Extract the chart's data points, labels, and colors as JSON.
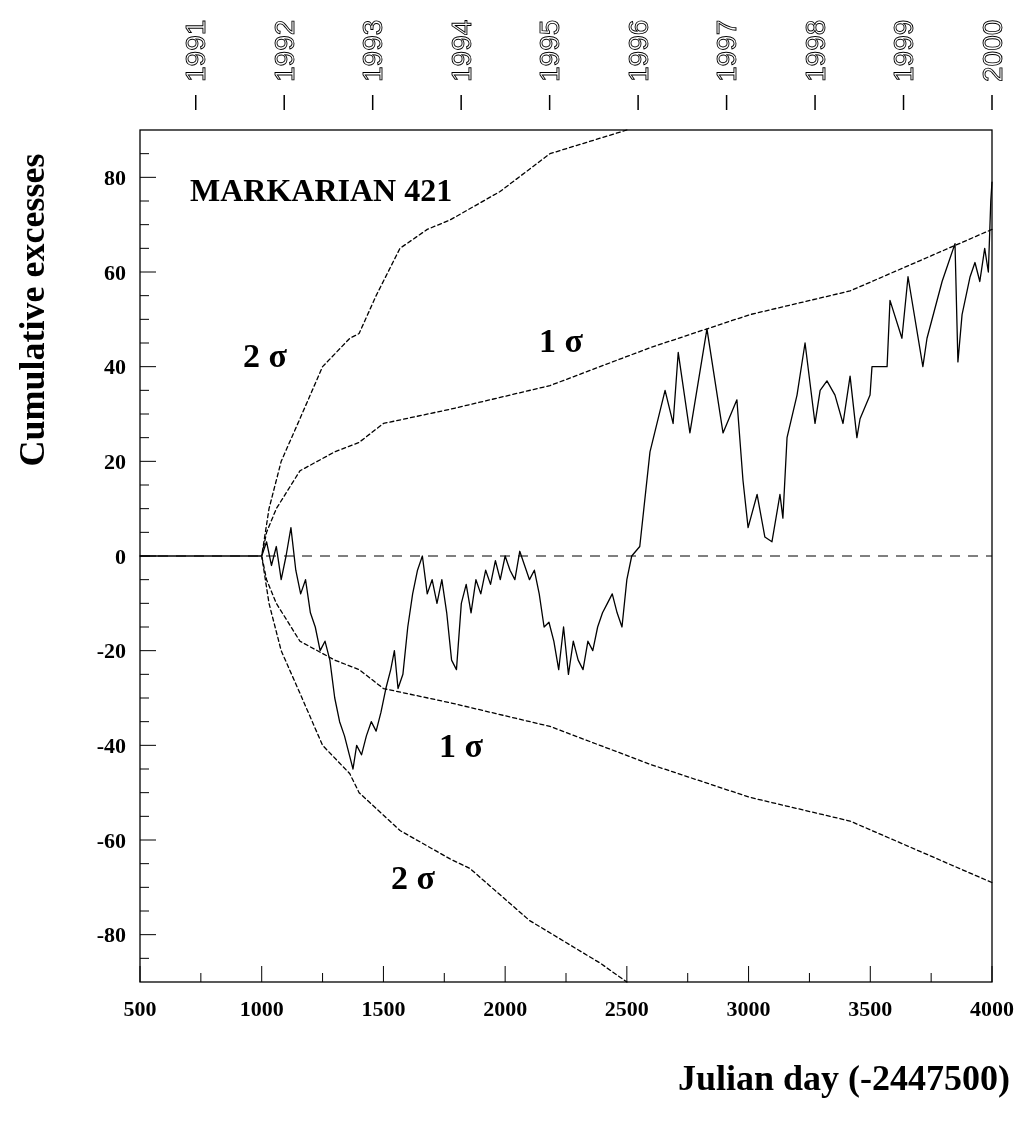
{
  "chart_data": {
    "type": "line",
    "title": "MARKARIAN 421",
    "xlabel": "Julian day (-2447500)",
    "ylabel": "Cumulative excesses",
    "xlim": [
      500,
      4000
    ],
    "ylim": [
      -90,
      90
    ],
    "xticks": [
      500,
      {
        "value": 750,
        "label": null
      },
      1000,
      {
        "value": 1250,
        "label": null
      },
      1500,
      {
        "value": 1750,
        "label": null
      },
      2000,
      {
        "value": 2250,
        "label": null
      },
      2500,
      {
        "value": 2750,
        "label": null
      },
      3000,
      {
        "value": 3250,
        "label": null
      },
      3500,
      {
        "value": 3750,
        "label": null
      },
      4000
    ],
    "yticks": [
      {
        "value": -85,
        "label": null
      },
      -80,
      {
        "value": -75,
        "label": null
      },
      {
        "value": -70,
        "label": null
      },
      {
        "value": -65,
        "label": null
      },
      -60,
      {
        "value": -55,
        "label": null
      },
      {
        "value": -50,
        "label": null
      },
      {
        "value": -45,
        "label": null
      },
      -40,
      {
        "value": -35,
        "label": null
      },
      {
        "value": -30,
        "label": null
      },
      {
        "value": -25,
        "label": null
      },
      -20,
      {
        "value": -15,
        "label": null
      },
      {
        "value": -10,
        "label": null
      },
      {
        "value": -5,
        "label": null
      },
      0,
      {
        "value": 5,
        "label": null
      },
      {
        "value": 10,
        "label": null
      },
      {
        "value": 15,
        "label": null
      },
      20,
      {
        "value": 25,
        "label": null
      },
      {
        "value": 30,
        "label": null
      },
      {
        "value": 35,
        "label": null
      },
      40,
      {
        "value": 45,
        "label": null
      },
      {
        "value": 50,
        "label": null
      },
      {
        "value": 55,
        "label": null
      },
      60,
      {
        "value": 65,
        "label": null
      },
      {
        "value": 70,
        "label": null
      },
      {
        "value": 75,
        "label": null
      },
      80,
      {
        "value": 85,
        "label": null
      }
    ],
    "x2lim": [
      1990.37,
      2000
    ],
    "x2ticks": [
      1991,
      1992,
      1993,
      1994,
      1995,
      1996,
      1997,
      1998,
      1999,
      2000
    ],
    "grid": false,
    "ref_lines": [
      {
        "axis": "y",
        "value": 0,
        "color": "#000000",
        "line_style": "dashed"
      }
    ],
    "annotations": [
      "2 σ",
      "1 σ",
      "1 σ",
      "2 σ"
    ],
    "series": [
      {
        "color": "#000000",
        "line_style": "solid",
        "x": [
          500,
          1000,
          1020,
          1040,
          1060,
          1080,
          1100,
          1120,
          1140,
          1160,
          1180,
          1200,
          1220,
          1240,
          1260,
          1280,
          1300,
          1320,
          1340,
          1360,
          1375,
          1390,
          1410,
          1430,
          1450,
          1470,
          1490,
          1510,
          1530,
          1545,
          1560,
          1580,
          1600,
          1620,
          1640,
          1660,
          1680,
          1700,
          1720,
          1740,
          1760,
          1780,
          1800,
          1820,
          1840,
          1860,
          1880,
          1900,
          1920,
          1940,
          1960,
          1980,
          2000,
          2020,
          2040,
          2060,
          2080,
          2100,
          2120,
          2140,
          2160,
          2180,
          2200,
          2220,
          2240,
          2260,
          2280,
          2300,
          2320,
          2340,
          2360,
          2380,
          2400,
          2420,
          2440,
          2460,
          2480,
          2500,
          2520,
          2553,
          2595,
          2657,
          2690,
          2711,
          2759,
          2829,
          2895,
          2952,
          2977,
          2998,
          3035,
          3067,
          3096,
          3129,
          3141,
          3158,
          3199,
          3232,
          3273,
          3294,
          3322,
          3355,
          3388,
          3417,
          3445,
          3458,
          3499,
          3507,
          3569,
          3581,
          3630,
          3655,
          3716,
          3733,
          3795,
          3848,
          3860,
          3877,
          3910,
          3930,
          3950,
          3970,
          3985,
          3995,
          4000
        ],
        "values": [
          0,
          0,
          3,
          -2,
          2,
          -5,
          0,
          6,
          -3,
          -8,
          -5,
          -12,
          -15,
          -20,
          -18,
          -22,
          -30,
          -35,
          -38,
          -42,
          -45,
          -40,
          -42,
          -38,
          -35,
          -37,
          -33,
          -28,
          -24,
          -20,
          -28,
          -25,
          -15,
          -8,
          -3,
          0,
          -8,
          -5,
          -10,
          -5,
          -12,
          -22,
          -24,
          -10,
          -6,
          -12,
          -5,
          -8,
          -3,
          -6,
          -1,
          -5,
          0,
          -3,
          -5,
          1,
          -2,
          -5,
          -3,
          -8,
          -15,
          -14,
          -18,
          -24,
          -15,
          -25,
          -18,
          -22,
          -24,
          -18,
          -20,
          -15,
          -12,
          -10,
          -8,
          -12,
          -15,
          -5,
          0,
          2,
          22,
          35,
          28,
          43,
          26,
          48,
          26,
          33,
          16,
          6,
          13,
          4,
          3,
          13,
          8,
          25,
          34,
          45,
          28,
          35,
          37,
          34,
          28,
          38,
          25,
          29,
          34,
          40,
          40,
          54,
          46,
          59,
          40,
          46,
          58,
          66,
          41,
          51,
          59,
          62,
          58,
          65,
          60,
          75,
          79
        ]
      },
      {
        "color": "#000000",
        "line_style": "dashed",
        "x": [
          2500,
          2184,
          1979,
          1774,
          1680,
          1568,
          1470,
          1400,
          1362,
          1250,
          1157,
          1080,
          1030,
          1000,
          1030,
          1080,
          1157,
          1250,
          1362,
          1400,
          1568,
          1774,
          1855,
          2100,
          2390,
          2500
        ],
        "values": [
          90,
          85,
          77,
          71,
          69,
          65,
          55,
          47,
          46,
          40,
          29,
          20,
          10,
          0,
          -10,
          -20,
          -29,
          -40,
          -46,
          -50,
          -58,
          -64,
          -66,
          -77,
          -86,
          -90
        ]
      },
      {
        "color": "#000000",
        "line_style": "dashed",
        "x": [
          4000,
          3417,
          3006,
          2595,
          2184,
          1774,
          1500,
          1400,
          1300,
          1157,
          1060,
          1020,
          1000,
          1020,
          1060,
          1157,
          1300,
          1400,
          1500,
          1774,
          2184,
          2595,
          3006,
          3417,
          4000
        ],
        "values": [
          69,
          56,
          51,
          44,
          36,
          31,
          28,
          24,
          22,
          18,
          10,
          5,
          0,
          -5,
          -10,
          -18,
          -22,
          -24,
          -28,
          -31,
          -36,
          -44,
          -51,
          -56,
          -69
        ]
      }
    ]
  }
}
